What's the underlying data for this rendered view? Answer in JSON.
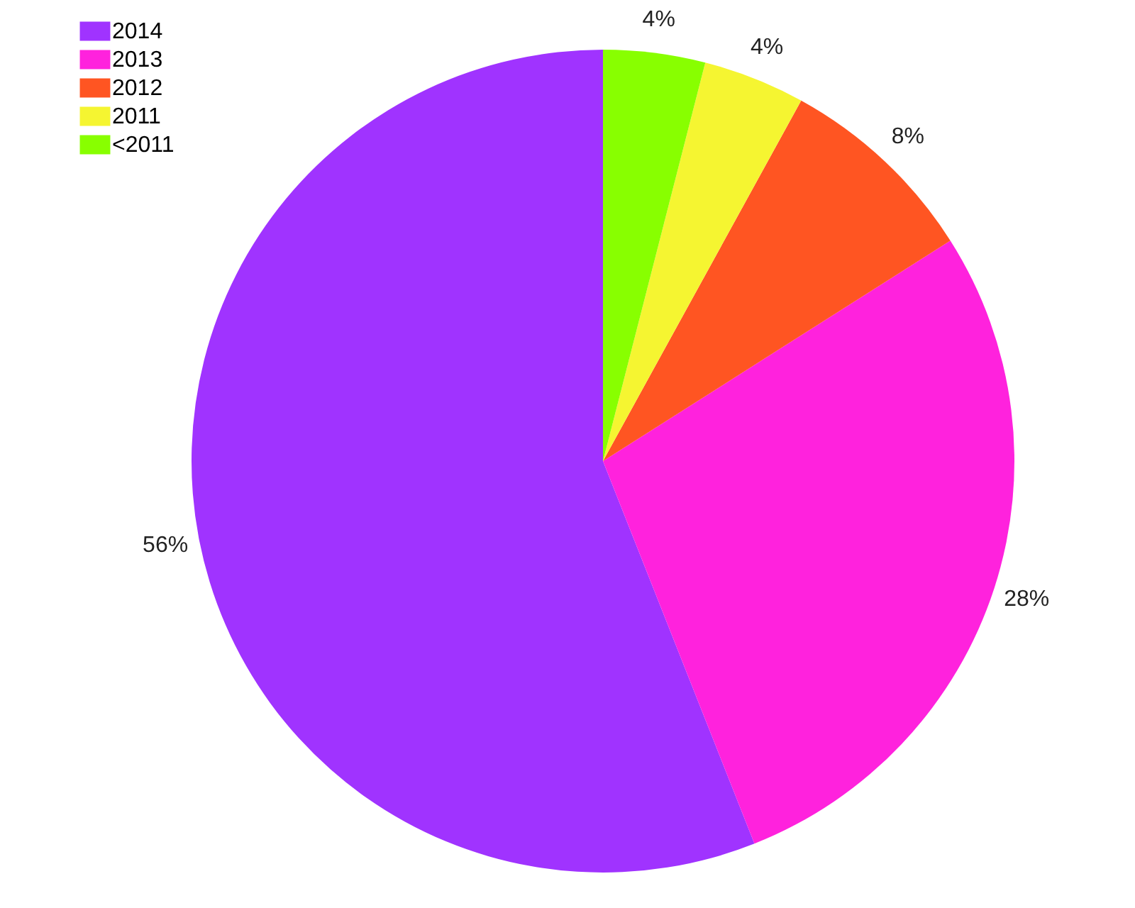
{
  "chart_data": {
    "type": "pie",
    "categories": [
      "2014",
      "2013",
      "2012",
      "2011",
      "<2011"
    ],
    "values": [
      56,
      28,
      8,
      4,
      4
    ],
    "colors": [
      "#a033ff",
      "#ff22dd",
      "#ff5522",
      "#f5f531",
      "#88ff00"
    ],
    "value_labels": [
      "56%",
      "28%",
      "8%",
      "4%",
      "4%"
    ],
    "legend": "top left"
  }
}
